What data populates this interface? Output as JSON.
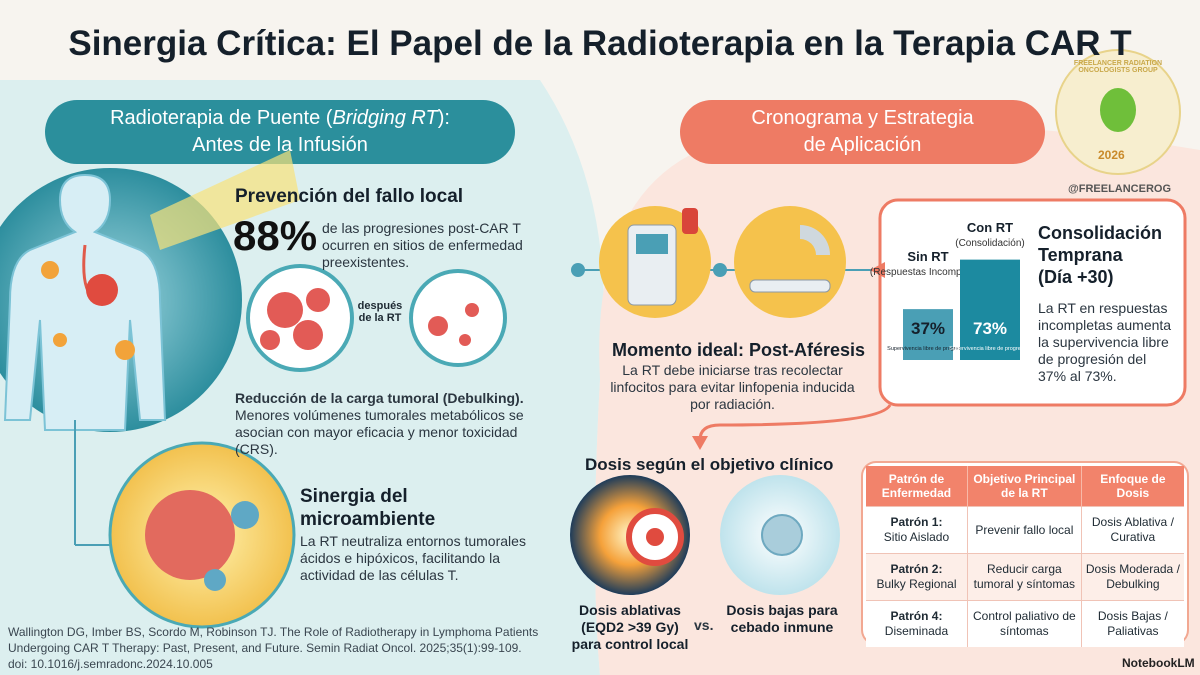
{
  "title": "Sinergia Crítica: El Papel de la Radioterapia en la Terapia CAR T",
  "left_banner": {
    "pre": "Radioterapia de Puente (",
    "em": "Bridging RT",
    "post": "):",
    "line2": "Antes de la Infusión"
  },
  "prevention": {
    "heading": "Prevención del fallo local",
    "stat": "88%",
    "text": "de las progresiones post-CAR T ocurren en sitios de enfermedad preexistentes."
  },
  "debulking": {
    "label": "después de la RT",
    "heading": "Reducción de la carga tumoral (Debulking).",
    "text": "Menores volúmenes tumorales metabólicos se asocian con mayor eficacia y menor toxicidad (CRS)."
  },
  "microenvironment": {
    "heading": "Sinergia del microambiente",
    "text": "La RT neutraliza entornos tumorales ácidos e hipóxicos, facilitando la actividad de las células T."
  },
  "citation": [
    "Wallington DG, Imber BS, Scordo M, Robinson TJ. The Role of Radiotherapy in Lymphoma Patients",
    "Undergoing CAR T Therapy: Past, Present, and Future. Semin Radiat Oncol. 2025;35(1):99-109.",
    "doi: 10.1016/j.semradonc.2024.10.005"
  ],
  "right_banner": [
    "Cronograma y Estrategia",
    "de Aplicación"
  ],
  "logo": {
    "text": "FREELANCER RADIATION ONCOLOGISTS GROUP",
    "year": "2026",
    "handle": "@FREELANCEROG"
  },
  "timing": {
    "heading": "Momento ideal: Post-Aféresis",
    "text": "La RT debe iniciarse tras recolectar linfocitos para evitar linfopenia inducida por radiación."
  },
  "consolidation": {
    "heading": [
      "Consolidación",
      "Temprana",
      "(Día +30)"
    ],
    "text": "La RT en respuestas incompletas aumenta la supervivencia libre de progresión del 37% al 73%."
  },
  "chart_data": {
    "type": "bar",
    "categories": [
      "Sin RT",
      "Con RT"
    ],
    "category_notes": [
      "(Respuestas Incompletas)",
      "(Consolidación)"
    ],
    "values": [
      37,
      73
    ],
    "value_labels": [
      "37%",
      "73%"
    ],
    "bar_caption": "Supervivencia libre de progresión",
    "colors": [
      "#4a9fb5",
      "#1c8aa0"
    ],
    "ylim": [
      0,
      80
    ]
  },
  "dose": {
    "heading": "Dosis según el objetivo clínico",
    "ablative": "Dosis ablativas (EQD2 >39 Gy) para control local",
    "vs": "vs.",
    "low": "Dosis bajas para cebado inmune"
  },
  "table": {
    "header": [
      "Patrón de Enfermedad",
      "Objetivo Principal de la RT",
      "Enfoque de Dosis"
    ],
    "rows": [
      [
        [
          "Patrón 1:",
          "Sitio Aislado"
        ],
        "Prevenir fallo local",
        "Dosis Ablativa / Curativa"
      ],
      [
        [
          "Patrón 2:",
          "Bulky Regional"
        ],
        "Reducir carga tumoral y síntomas",
        "Dosis Moderada / Debulking"
      ],
      [
        [
          "Patrón 4:",
          "Diseminada"
        ],
        "Control paliativo de síntomas",
        "Dosis Bajas / Paliativas"
      ]
    ]
  },
  "footer": "NotebookLM"
}
